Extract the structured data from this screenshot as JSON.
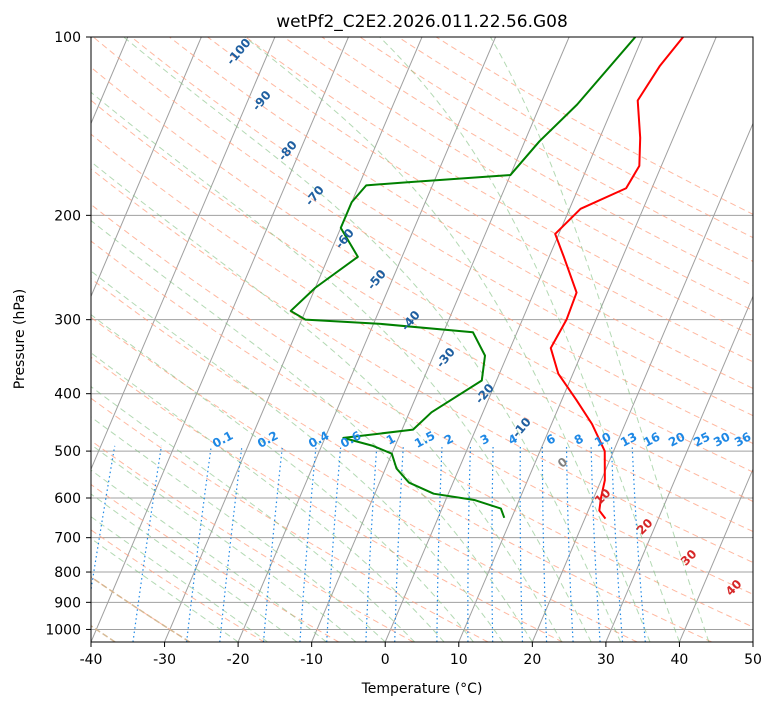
{
  "chart_data": {
    "type": "skew-t",
    "title": "wetPf2_C2E2.2026.011.22.56.G08",
    "xlabel": "Temperature (°C)",
    "ylabel": "Pressure (hPa)",
    "xlim": [
      -40,
      50
    ],
    "ylim": [
      1050,
      100
    ],
    "x_ticks": [
      -40,
      -30,
      -20,
      -10,
      0,
      10,
      20,
      30,
      40,
      50
    ],
    "y_ticks": [
      1000,
      900,
      800,
      700,
      600,
      500,
      400,
      300,
      200,
      100
    ],
    "colors": {
      "temperature": "#ff0000",
      "dewpoint": "#008000",
      "isotherm": "#a0a0a0",
      "isobar": "#a0a0a0",
      "dry_adiabat": "#ffa080",
      "moist_adiabat": "#80c080",
      "mixing_ratio": "#1e88e5",
      "dry_adiabat_curved": "#d2b48c",
      "isotherm_label": "#1f5fa0",
      "mixing_ratio_label": "#1e88e5",
      "dry_adiabat_label": "#d62728",
      "moist_adiabat_label": "#808080"
    },
    "isotherm_labels": [
      "-100",
      "-90",
      "-80",
      "-70",
      "-60",
      "-50",
      "-40",
      "-30",
      "-20",
      "-10"
    ],
    "mixing_ratio_labels": [
      "0.1",
      "0.2",
      "0.4",
      "0.6",
      "1",
      "1.5",
      "2",
      "3",
      "4",
      "6",
      "8",
      "10",
      "13",
      "16",
      "20",
      "25",
      "30",
      "36"
    ],
    "dry_adiabat_labels": [
      "10",
      "20",
      "30",
      "40"
    ],
    "moist_adiabat_labels": [
      "0"
    ],
    "temperature_profile": [
      [
        22.8,
        650
      ],
      [
        21.5,
        630
      ],
      [
        21.0,
        600
      ],
      [
        20.5,
        560
      ],
      [
        18.8,
        500
      ],
      [
        15.5,
        450
      ],
      [
        12.0,
        410
      ],
      [
        8.0,
        370
      ],
      [
        5.5,
        335
      ],
      [
        6.0,
        300
      ],
      [
        5.8,
        270
      ],
      [
        2.0,
        235
      ],
      [
        -0.5,
        215
      ],
      [
        1.5,
        195
      ],
      [
        6.5,
        180
      ],
      [
        7.0,
        165
      ],
      [
        5.5,
        148
      ],
      [
        3.0,
        128
      ],
      [
        4.0,
        112
      ],
      [
        5.5,
        100
      ]
    ],
    "dewpoint_profile": [
      [
        9.0,
        648
      ],
      [
        8.0,
        625
      ],
      [
        4.0,
        605
      ],
      [
        -2.0,
        590
      ],
      [
        -6.0,
        565
      ],
      [
        -8.5,
        535
      ],
      [
        -10.0,
        505
      ],
      [
        -13.0,
        490
      ],
      [
        -17.5,
        475
      ],
      [
        -8.5,
        460
      ],
      [
        -7.0,
        430
      ],
      [
        -2.0,
        380
      ],
      [
        -3.0,
        345
      ],
      [
        -6.0,
        315
      ],
      [
        -19.0,
        305
      ],
      [
        -29.5,
        300
      ],
      [
        -32.0,
        290
      ],
      [
        -30.0,
        265
      ],
      [
        -26.0,
        235
      ],
      [
        -30.0,
        210
      ],
      [
        -30.0,
        190
      ],
      [
        -29.0,
        178
      ],
      [
        -24.0,
        176
      ],
      [
        -10.0,
        171
      ],
      [
        -8.0,
        150
      ],
      [
        -5.0,
        130
      ],
      [
        -1.0,
        100
      ]
    ]
  }
}
